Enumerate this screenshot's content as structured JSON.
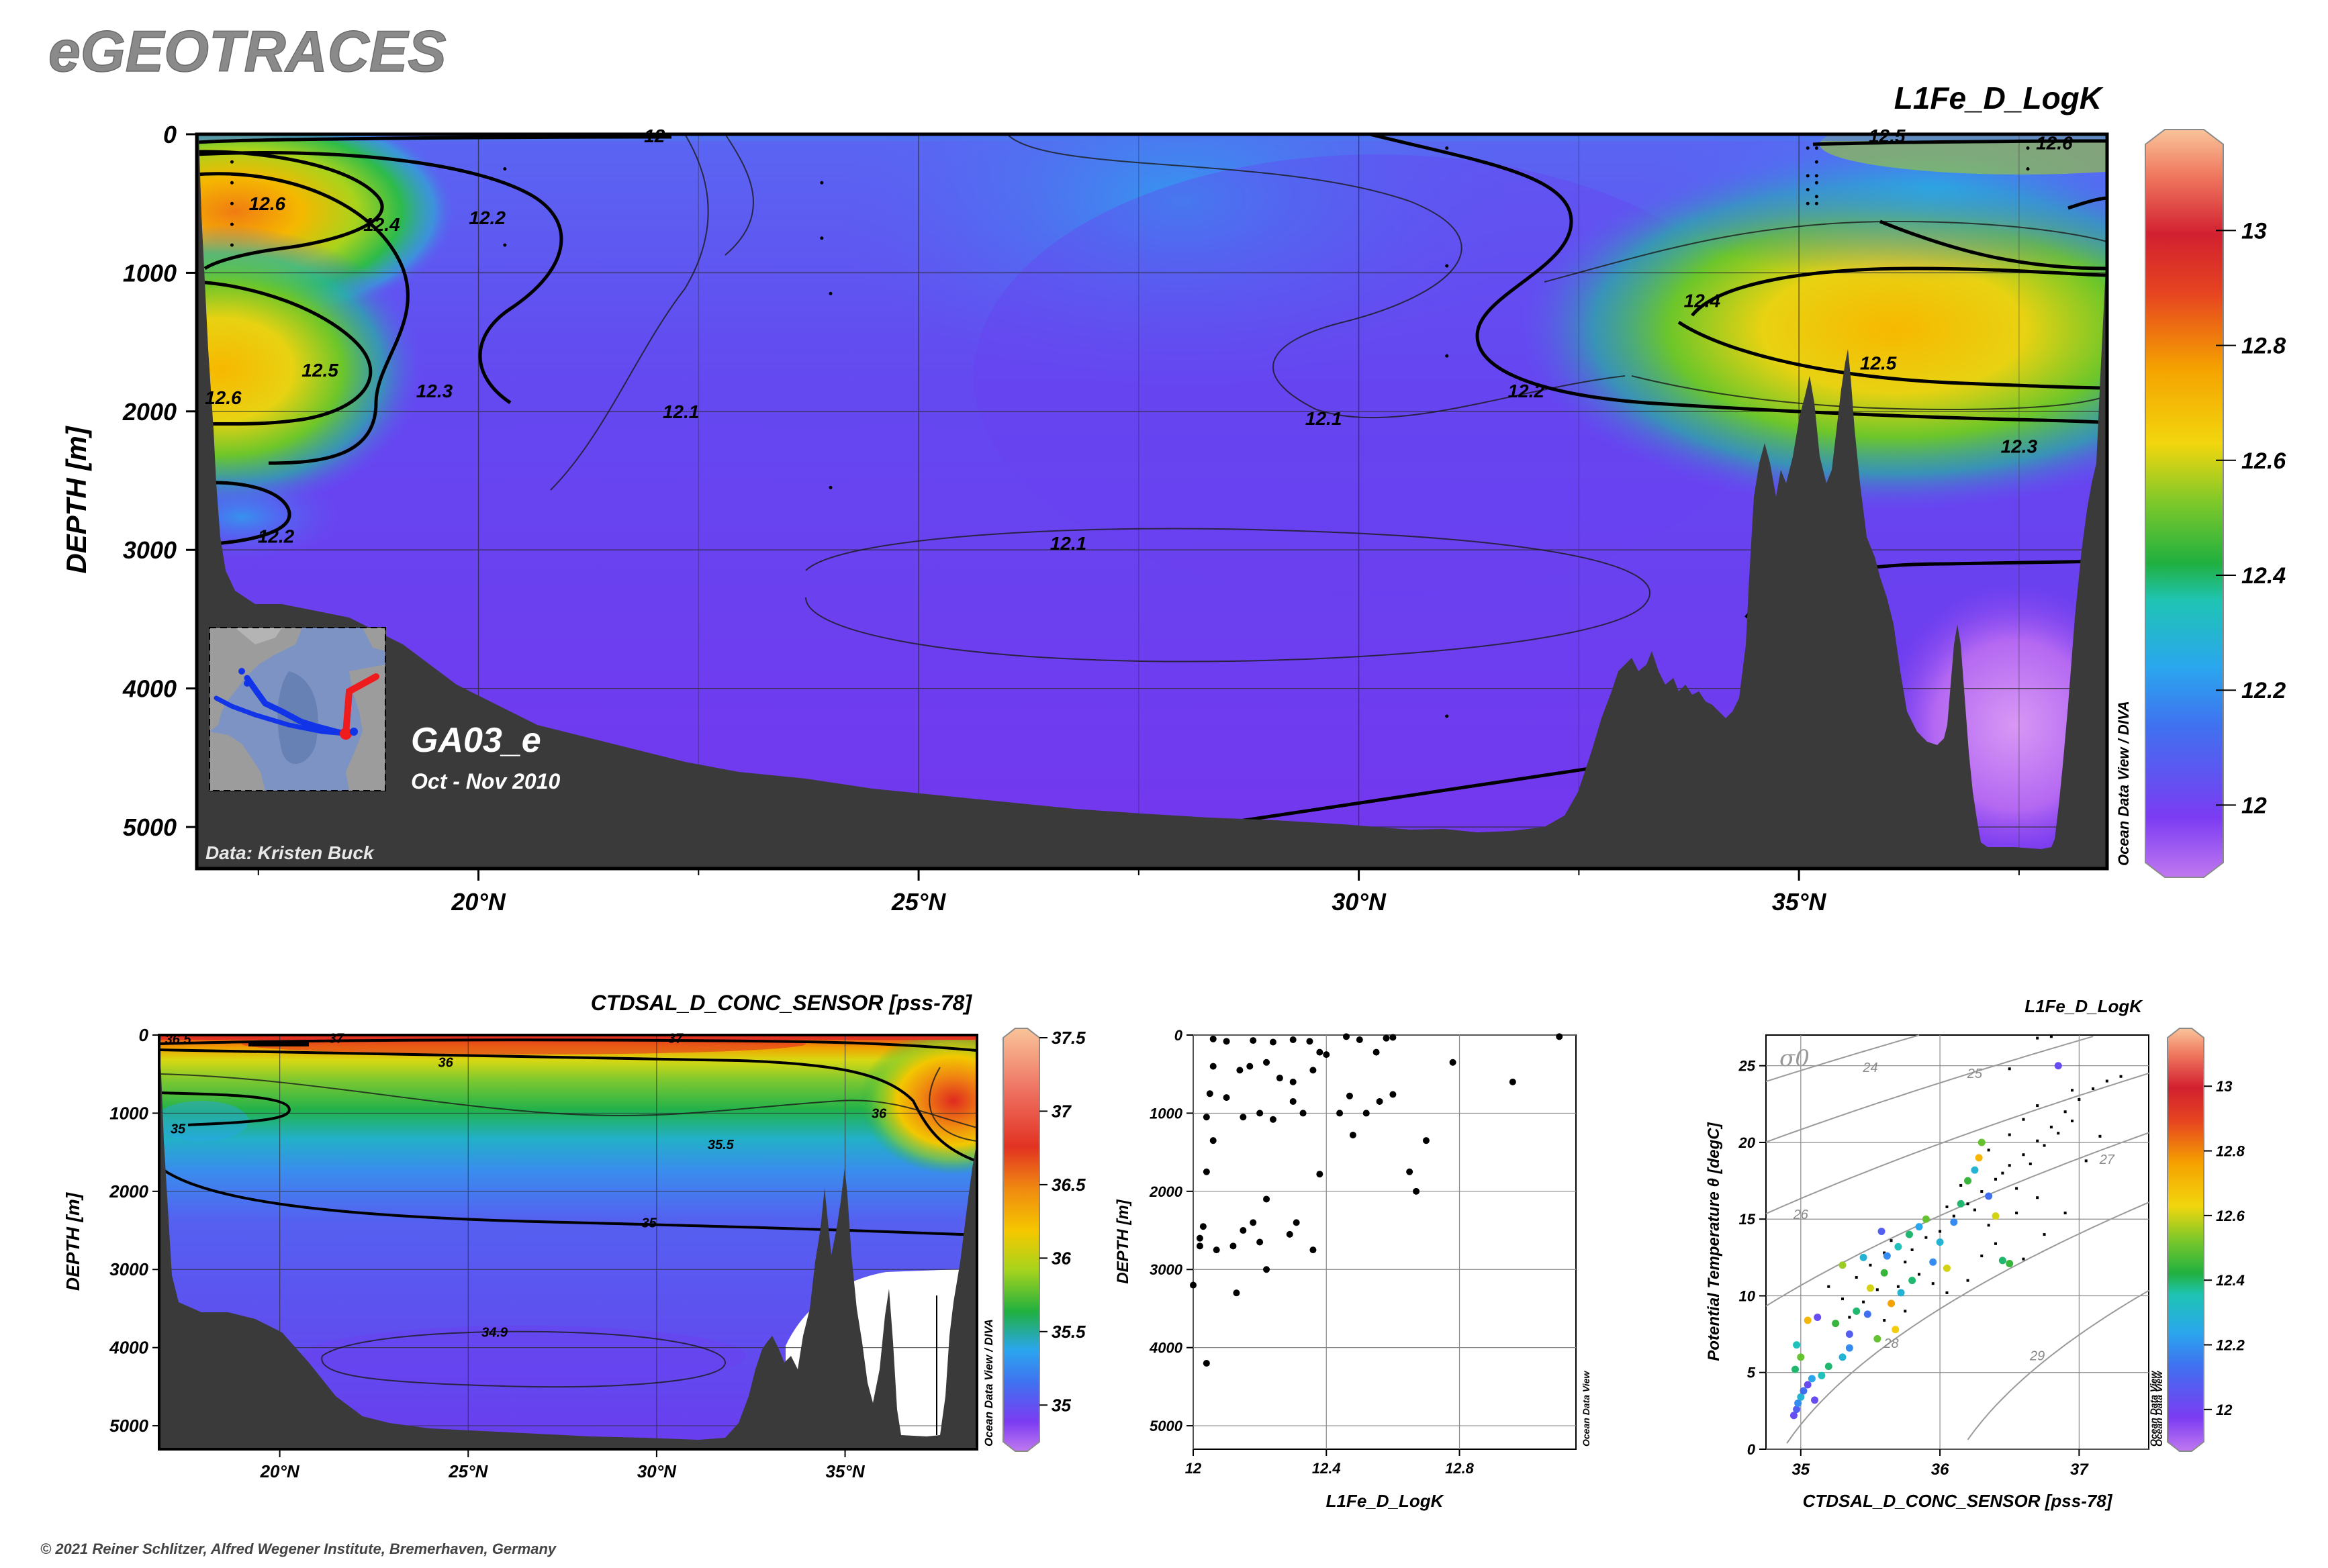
{
  "header": {
    "logo_text": "eGEOTRACES",
    "copyright": "© 2021 Reiner Schlitzer, Alfred Wegener Institute, Bremerhaven, Germany"
  },
  "colors": {
    "terrain": "#3a3a3a",
    "low": "#7b2cf0",
    "high": "#f7b07a"
  },
  "chart_data": [
    {
      "type": "heatmap",
      "title": "L1Fe_D_LogK",
      "ylabel": "DEPTH [m]",
      "xlim": [
        16.8,
        38.5
      ],
      "ylim": [
        5300,
        0
      ],
      "xticks": [
        {
          "v": 20,
          "label": "20°N"
        },
        {
          "v": 25,
          "label": "25°N"
        },
        {
          "v": 30,
          "label": "30°N"
        },
        {
          "v": 35,
          "label": "35°N"
        }
      ],
      "yticks": [
        {
          "v": 0,
          "label": "0"
        },
        {
          "v": 1000,
          "label": "1000"
        },
        {
          "v": 2000,
          "label": "2000"
        },
        {
          "v": 3000,
          "label": "3000"
        },
        {
          "v": 4000,
          "label": "4000"
        },
        {
          "v": 5000,
          "label": "5000"
        }
      ],
      "colorbar": {
        "ticks": [
          {
            "v": 12,
            "label": "12"
          },
          {
            "v": 12.2,
            "label": "12.2"
          },
          {
            "v": 12.4,
            "label": "12.4"
          },
          {
            "v": 12.6,
            "label": "12.6"
          },
          {
            "v": 12.8,
            "label": "12.8"
          },
          {
            "v": 13,
            "label": "13"
          }
        ],
        "range": [
          11.9,
          13.15
        ],
        "side_label": "Ocean Data View / DIVA"
      },
      "section_name": "GA03_e",
      "period": "Oct - Nov 2010",
      "credit": "Data: Kristen Buck",
      "contour_labels": [
        {
          "text": "12.6",
          "x": 17.6,
          "y": 500
        },
        {
          "text": "12.4",
          "x": 18.9,
          "y": 650
        },
        {
          "text": "12.2",
          "x": 20.1,
          "y": 600
        },
        {
          "text": "12.5",
          "x": 18.2,
          "y": 1700
        },
        {
          "text": "12.3",
          "x": 19.5,
          "y": 1850
        },
        {
          "text": "12.6",
          "x": 17.1,
          "y": 1900
        },
        {
          "text": "12.2",
          "x": 17.7,
          "y": 2900
        },
        {
          "text": "12.1",
          "x": 22.3,
          "y": 2000
        },
        {
          "text": "12.1",
          "x": 26.7,
          "y": 2950
        },
        {
          "text": "12.1",
          "x": 29.6,
          "y": 2050
        },
        {
          "text": "12.2",
          "x": 31.9,
          "y": 1850
        },
        {
          "text": "12.4",
          "x": 33.9,
          "y": 1200
        },
        {
          "text": "12.5",
          "x": 35.9,
          "y": 1650
        },
        {
          "text": "12.3",
          "x": 37.5,
          "y": 2250
        },
        {
          "text": "12",
          "x": 22.0,
          "y": 10
        },
        {
          "text": "12.5",
          "x": 36.0,
          "y": 10
        },
        {
          "text": "12.6",
          "x": 37.9,
          "y": 60
        }
      ]
    },
    {
      "type": "heatmap",
      "title": "CTDSAL_D_CONC_SENSOR [pss-78]",
      "ylabel": "DEPTH [m]",
      "xlim": [
        16.8,
        38.5
      ],
      "ylim": [
        5300,
        0
      ],
      "xticks": [
        {
          "v": 20,
          "label": "20°N"
        },
        {
          "v": 25,
          "label": "25°N"
        },
        {
          "v": 30,
          "label": "30°N"
        },
        {
          "v": 35,
          "label": "35°N"
        }
      ],
      "yticks": [
        {
          "v": 0,
          "label": "0"
        },
        {
          "v": 1000,
          "label": "1000"
        },
        {
          "v": 2000,
          "label": "2000"
        },
        {
          "v": 3000,
          "label": "3000"
        },
        {
          "v": 4000,
          "label": "4000"
        },
        {
          "v": 5000,
          "label": "5000"
        }
      ],
      "colorbar": {
        "ticks": [
          {
            "v": 35,
            "label": "35"
          },
          {
            "v": 35.5,
            "label": "35.5"
          },
          {
            "v": 36,
            "label": "36"
          },
          {
            "v": 36.5,
            "label": "36.5"
          },
          {
            "v": 37,
            "label": "37"
          },
          {
            "v": 37.5,
            "label": "37.5"
          }
        ],
        "range": [
          34.75,
          37.5
        ],
        "side_label": "Ocean Data View / DIVA"
      },
      "contour_labels": [
        {
          "text": "36.5",
          "x": 17.3,
          "y": 50
        },
        {
          "text": "37",
          "x": 21.5,
          "y": 40
        },
        {
          "text": "37",
          "x": 30.5,
          "y": 40
        },
        {
          "text": "36",
          "x": 24.4,
          "y": 350
        },
        {
          "text": "36",
          "x": 35.9,
          "y": 1000
        },
        {
          "text": "35.5",
          "x": 31.7,
          "y": 1400
        },
        {
          "text": "35",
          "x": 17.3,
          "y": 1200
        },
        {
          "text": "35",
          "x": 29.8,
          "y": 2400
        },
        {
          "text": "34.9",
          "x": 25.7,
          "y": 3800
        }
      ]
    },
    {
      "type": "scatter",
      "xlabel": "L1Fe_D_LogK",
      "ylabel": "DEPTH [m]",
      "xlim": [
        12,
        13.15
      ],
      "ylim": [
        5300,
        0
      ],
      "xticks": [
        {
          "v": 12,
          "label": "12"
        },
        {
          "v": 12.4,
          "label": "12.4"
        },
        {
          "v": 12.8,
          "label": "12.8"
        }
      ],
      "yticks": [
        {
          "v": 0,
          "label": "0"
        },
        {
          "v": 1000,
          "label": "1000"
        },
        {
          "v": 2000,
          "label": "2000"
        },
        {
          "v": 3000,
          "label": "3000"
        },
        {
          "v": 4000,
          "label": "4000"
        },
        {
          "v": 5000,
          "label": "5000"
        }
      ],
      "side_label": "Ocean Data View",
      "points": [
        [
          12.06,
          50
        ],
        [
          12.1,
          80
        ],
        [
          12.18,
          70
        ],
        [
          12.24,
          90
        ],
        [
          12.3,
          60
        ],
        [
          12.35,
          80
        ],
        [
          12.38,
          220
        ],
        [
          12.46,
          20
        ],
        [
          12.5,
          60
        ],
        [
          12.55,
          220
        ],
        [
          12.58,
          40
        ],
        [
          12.6,
          30
        ],
        [
          13.1,
          20
        ],
        [
          12.78,
          350
        ],
        [
          12.96,
          600
        ],
        [
          12.06,
          400
        ],
        [
          12.14,
          450
        ],
        [
          12.17,
          400
        ],
        [
          12.22,
          350
        ],
        [
          12.26,
          550
        ],
        [
          12.3,
          600
        ],
        [
          12.36,
          450
        ],
        [
          12.4,
          250
        ],
        [
          12.47,
          780
        ],
        [
          12.52,
          1000
        ],
        [
          12.56,
          850
        ],
        [
          12.6,
          760
        ],
        [
          12.05,
          750
        ],
        [
          12.1,
          800
        ],
        [
          12.15,
          1050
        ],
        [
          12.2,
          1000
        ],
        [
          12.24,
          1080
        ],
        [
          12.3,
          850
        ],
        [
          12.33,
          1000
        ],
        [
          12.44,
          1000
        ],
        [
          12.48,
          1280
        ],
        [
          12.7,
          1350
        ],
        [
          12.65,
          1750
        ],
        [
          12.67,
          2000
        ],
        [
          12.04,
          1050
        ],
        [
          12.06,
          1350
        ],
        [
          12.04,
          1750
        ],
        [
          12.22,
          2100
        ],
        [
          12.38,
          1780
        ],
        [
          12.03,
          2450
        ],
        [
          12.02,
          2600
        ],
        [
          12.02,
          2700
        ],
        [
          12.07,
          2750
        ],
        [
          12.12,
          2700
        ],
        [
          12.15,
          2500
        ],
        [
          12.18,
          2400
        ],
        [
          12.29,
          2550
        ],
        [
          12.31,
          2400
        ],
        [
          12.2,
          2650
        ],
        [
          12.36,
          2750
        ],
        [
          12.0,
          3200
        ],
        [
          12.13,
          3300
        ],
        [
          12.22,
          3000
        ],
        [
          12.04,
          4200
        ]
      ]
    },
    {
      "type": "scatter",
      "title": "L1Fe_D_LogK",
      "xlabel": "CTDSAL_D_CONC_SENSOR [pss-78]",
      "ylabel": "Potential Temperature θ [degC]",
      "xlim": [
        34.75,
        37.5
      ],
      "ylim": [
        0,
        27
      ],
      "xticks": [
        {
          "v": 35,
          "label": "35"
        },
        {
          "v": 36,
          "label": "36"
        },
        {
          "v": 37,
          "label": "37"
        }
      ],
      "yticks": [
        {
          "v": 0,
          "label": "0"
        },
        {
          "v": 5,
          "label": "5"
        },
        {
          "v": 10,
          "label": "10"
        },
        {
          "v": 15,
          "label": "15"
        },
        {
          "v": 20,
          "label": "20"
        },
        {
          "v": 25,
          "label": "25"
        }
      ],
      "sigma_label": "σ0",
      "isopycnal_labels": [
        "24",
        "25",
        "26",
        "27",
        "28",
        "29"
      ],
      "colorbar": {
        "ticks": [
          {
            "v": 12,
            "label": "12"
          },
          {
            "v": 12.2,
            "label": "12.2"
          },
          {
            "v": 12.4,
            "label": "12.4"
          },
          {
            "v": 12.6,
            "label": "12.6"
          },
          {
            "v": 12.8,
            "label": "12.8"
          },
          {
            "v": 13,
            "label": "13"
          }
        ],
        "range": [
          11.9,
          13.15
        ],
        "side_label": "Ocean Data View"
      },
      "side_label": "Ocean Data View",
      "points": [
        [
          34.95,
          2.2,
          12.05
        ],
        [
          34.97,
          2.6,
          12.1
        ],
        [
          34.98,
          3.0,
          12.2
        ],
        [
          35.0,
          3.4,
          12.3
        ],
        [
          35.02,
          3.8,
          12.15
        ],
        [
          35.05,
          4.2,
          12.05
        ],
        [
          35.08,
          4.6,
          12.25
        ],
        [
          34.96,
          5.2,
          12.4
        ],
        [
          35.0,
          6.0,
          12.5
        ],
        [
          34.97,
          6.8,
          12.35
        ],
        [
          35.05,
          8.4,
          12.7
        ],
        [
          35.12,
          8.6,
          12.05
        ],
        [
          35.2,
          5.4,
          12.4
        ],
        [
          35.3,
          6.0,
          12.3
        ],
        [
          35.35,
          7.5,
          12.1
        ],
        [
          35.4,
          9.0,
          12.4
        ],
        [
          35.5,
          10.5,
          12.6
        ],
        [
          35.55,
          7.2,
          12.5
        ],
        [
          35.6,
          11.5,
          12.45
        ],
        [
          35.62,
          12.6,
          12.2
        ],
        [
          35.7,
          13.2,
          12.35
        ],
        [
          35.72,
          10.2,
          12.3
        ],
        [
          35.78,
          14.0,
          12.4
        ],
        [
          35.85,
          14.5,
          12.25
        ],
        [
          35.9,
          15.0,
          12.5
        ],
        [
          35.95,
          12.2,
          12.2
        ],
        [
          36.05,
          11.8,
          12.6
        ],
        [
          36.1,
          14.8,
          12.2
        ],
        [
          36.15,
          16.0,
          12.4
        ],
        [
          36.2,
          17.5,
          12.45
        ],
        [
          36.25,
          18.2,
          12.3
        ],
        [
          36.28,
          19.0,
          12.7
        ],
        [
          36.3,
          20.0,
          12.5
        ],
        [
          36.35,
          16.5,
          12.15
        ],
        [
          36.45,
          12.3,
          12.4
        ],
        [
          36.5,
          12.1,
          12.45
        ],
        [
          36.85,
          25.0,
          12.05
        ],
        [
          35.3,
          12.0,
          12.55
        ],
        [
          35.45,
          12.5,
          12.3
        ],
        [
          35.58,
          14.2,
          12.1
        ],
        [
          35.35,
          6.6,
          12.2
        ],
        [
          35.15,
          4.8,
          12.35
        ],
        [
          35.1,
          3.2,
          12.05
        ],
        [
          35.25,
          8.2,
          12.45
        ],
        [
          35.65,
          9.5,
          12.75
        ],
        [
          36.0,
          13.5,
          12.3
        ],
        [
          36.4,
          15.2,
          12.6
        ],
        [
          35.8,
          11.0,
          12.4
        ],
        [
          35.48,
          8.8,
          12.15
        ],
        [
          35.68,
          7.8,
          12.65
        ]
      ],
      "small_points": [
        [
          35.4,
          11.2
        ],
        [
          35.5,
          12.0
        ],
        [
          35.6,
          12.8
        ],
        [
          35.65,
          13.6
        ],
        [
          35.8,
          13.0
        ],
        [
          35.9,
          13.8
        ],
        [
          36.0,
          14.2
        ],
        [
          36.1,
          15.2
        ],
        [
          36.2,
          16.0
        ],
        [
          36.3,
          16.8
        ],
        [
          36.4,
          17.6
        ],
        [
          36.5,
          18.5
        ],
        [
          36.6,
          19.2
        ],
        [
          36.7,
          20.1
        ],
        [
          36.8,
          21.0
        ],
        [
          36.9,
          22.0
        ],
        [
          37.0,
          22.8
        ],
        [
          37.1,
          23.5
        ],
        [
          37.2,
          24.0
        ],
        [
          37.3,
          24.3
        ],
        [
          36.5,
          20.5
        ],
        [
          36.6,
          21.5
        ],
        [
          36.7,
          22.4
        ],
        [
          36.35,
          19.5
        ],
        [
          36.45,
          18.0
        ],
        [
          36.55,
          17.0
        ],
        [
          36.65,
          18.6
        ],
        [
          36.75,
          19.8
        ],
        [
          36.85,
          20.6
        ],
        [
          36.95,
          21.4
        ],
        [
          36.05,
          15.8
        ],
        [
          36.15,
          17.2
        ],
        [
          36.25,
          15.6
        ],
        [
          36.35,
          14.6
        ],
        [
          36.55,
          15.4
        ],
        [
          36.7,
          16.4
        ],
        [
          35.7,
          10.6
        ],
        [
          35.75,
          12.2
        ],
        [
          35.85,
          11.4
        ],
        [
          35.95,
          10.8
        ],
        [
          35.45,
          9.6
        ],
        [
          35.55,
          10.4
        ],
        [
          35.3,
          9.8
        ],
        [
          35.2,
          10.6
        ],
        [
          35.35,
          8.6
        ],
        [
          35.6,
          8.4
        ],
        [
          35.75,
          9.0
        ],
        [
          36.05,
          10.2
        ],
        [
          36.2,
          11.0
        ],
        [
          36.3,
          12.6
        ],
        [
          36.4,
          13.4
        ],
        [
          36.6,
          12.4
        ],
        [
          36.75,
          14.0
        ],
        [
          36.9,
          15.4
        ],
        [
          37.05,
          18.8
        ],
        [
          37.15,
          20.4
        ],
        [
          36.95,
          23.4
        ],
        [
          36.7,
          26.8
        ],
        [
          36.8,
          26.9
        ],
        [
          36.5,
          24.8
        ]
      ]
    }
  ]
}
